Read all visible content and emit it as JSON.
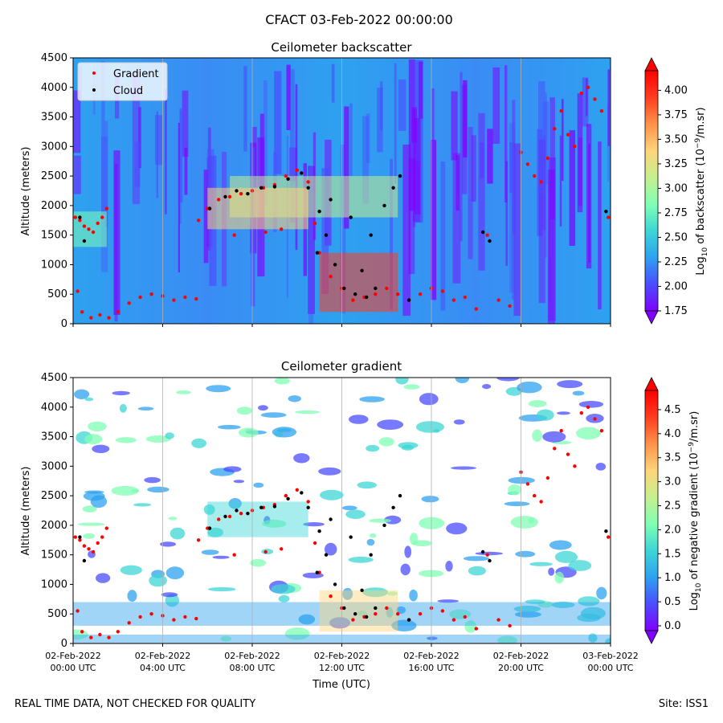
{
  "figure_title": "CFACT 03-Feb-2022 00:00:00",
  "footer": {
    "quality_note": "REAL TIME DATA, NOT CHECKED FOR QUALITY",
    "site": "Site: ISS1"
  },
  "colormap": [
    "#8000ff",
    "#4a4dfd",
    "#2ea1f0",
    "#3dd6d6",
    "#80ffb4",
    "#c6f08e",
    "#ffd47a",
    "#ff9248",
    "#ff3d1f",
    "#ff0000"
  ],
  "colors": {
    "gradient_marker": "#ff0000",
    "cloud_marker": "#000000",
    "panel_background": "#ffffff"
  },
  "chart_data": [
    {
      "type": "heatmap",
      "title": "Ceilometer backscatter",
      "xlabel": "",
      "ylabel": "Altitude (meters)",
      "ylim": [
        0,
        4500
      ],
      "yticks": [
        "0",
        "500",
        "1000",
        "1500",
        "2000",
        "2500",
        "3000",
        "3500",
        "4000",
        "4500"
      ],
      "xlim_hours": [
        0,
        24
      ],
      "xtick_labels_shown": false,
      "colorbar": {
        "label": "Log10 of backscatter (10^-9/m.sr)",
        "label_main": "Log",
        "label_sub": "10",
        "label_rest": " of backscatter (10",
        "label_sup": "−9",
        "label_end": "/m.sr)",
        "range": [
          1.75,
          4.2
        ],
        "ticks": [
          "1.75",
          "2.00",
          "2.25",
          "2.50",
          "2.75",
          "3.00",
          "3.25",
          "3.50",
          "3.75",
          "4.00"
        ]
      },
      "legend": {
        "placement": "upper-left",
        "entries": [
          "Gradient",
          "Cloud"
        ]
      },
      "series": [
        {
          "name": "Gradient",
          "kind": "scatter",
          "points": [
            [
              0.1,
              1800
            ],
            [
              0.3,
              1750
            ],
            [
              0.5,
              1650
            ],
            [
              0.7,
              1600
            ],
            [
              0.9,
              1550
            ],
            [
              1.1,
              1700
            ],
            [
              1.3,
              1800
            ],
            [
              1.5,
              1950
            ],
            [
              0.2,
              550
            ],
            [
              0.4,
              200
            ],
            [
              0.8,
              100
            ],
            [
              1.2,
              150
            ],
            [
              1.6,
              100
            ],
            [
              2,
              200
            ],
            [
              2.5,
              350
            ],
            [
              3,
              450
            ],
            [
              3.5,
              500
            ],
            [
              4,
              470
            ],
            [
              4.5,
              400
            ],
            [
              5,
              450
            ],
            [
              5.5,
              420
            ],
            [
              6,
              1950
            ],
            [
              6.5,
              2100
            ],
            [
              7,
              2150
            ],
            [
              7.5,
              2200
            ],
            [
              8,
              2250
            ],
            [
              8.5,
              2300
            ],
            [
              9,
              2350
            ],
            [
              9.5,
              2500
            ],
            [
              10,
              2600
            ],
            [
              10.5,
              2400
            ],
            [
              11,
              1200
            ],
            [
              11.5,
              800
            ],
            [
              12,
              600
            ],
            [
              12.5,
              400
            ],
            [
              13,
              450
            ],
            [
              13.5,
              500
            ],
            [
              14,
              600
            ],
            [
              14.5,
              500
            ],
            [
              15,
              400
            ],
            [
              15.5,
              500
            ],
            [
              16,
              600
            ],
            [
              16.5,
              550
            ],
            [
              17,
              400
            ],
            [
              17.5,
              450
            ],
            [
              18,
              250
            ],
            [
              18.5,
              1500
            ],
            [
              19,
              400
            ],
            [
              19.5,
              300
            ],
            [
              20,
              2900
            ],
            [
              20.3,
              2700
            ],
            [
              20.6,
              2500
            ],
            [
              20.9,
              2400
            ],
            [
              21.2,
              2800
            ],
            [
              21.5,
              3300
            ],
            [
              21.8,
              3600
            ],
            [
              22.1,
              3200
            ],
            [
              22.4,
              3000
            ],
            [
              22.7,
              3900
            ],
            [
              23,
              4000
            ],
            [
              23.3,
              3800
            ],
            [
              23.6,
              3600
            ],
            [
              23.9,
              1800
            ],
            [
              5.6,
              1750
            ],
            [
              7.2,
              1500
            ],
            [
              8.6,
              1550
            ],
            [
              9.3,
              1600
            ],
            [
              10.8,
              1700
            ]
          ]
        },
        {
          "name": "Cloud",
          "kind": "scatter",
          "points": [
            [
              0.3,
              1800
            ],
            [
              0.5,
              1400
            ],
            [
              6.1,
              1950
            ],
            [
              6.8,
              2150
            ],
            [
              7.3,
              2250
            ],
            [
              7.8,
              2200
            ],
            [
              8.4,
              2300
            ],
            [
              9,
              2320
            ],
            [
              9.6,
              2450
            ],
            [
              10.2,
              2550
            ],
            [
              10.5,
              2300
            ],
            [
              11,
              1900
            ],
            [
              11.3,
              1500
            ],
            [
              11.7,
              1000
            ],
            [
              12.1,
              600
            ],
            [
              12.6,
              500
            ],
            [
              13.1,
              450
            ],
            [
              13.5,
              600
            ],
            [
              13.9,
              2000
            ],
            [
              14.3,
              2300
            ],
            [
              14.6,
              2500
            ],
            [
              15,
              400
            ],
            [
              11.5,
              2100
            ],
            [
              12.4,
              1800
            ],
            [
              13.3,
              1500
            ],
            [
              18.3,
              1550
            ],
            [
              18.6,
              1400
            ],
            [
              23.8,
              1900
            ],
            [
              10.9,
              1200
            ],
            [
              12.9,
              900
            ]
          ]
        }
      ]
    },
    {
      "type": "heatmap",
      "title": "Ceilometer gradient",
      "xlabel": "Time (UTC)",
      "ylabel": "Altitude (meters)",
      "ylim": [
        0,
        4500
      ],
      "yticks": [
        "0",
        "500",
        "1000",
        "1500",
        "2000",
        "2500",
        "3000",
        "3500",
        "4000",
        "4500"
      ],
      "xlim_hours": [
        0,
        24
      ],
      "xticks": [
        {
          "date": "02-Feb-2022",
          "time": "00:00 UTC"
        },
        {
          "date": "02-Feb-2022",
          "time": "04:00 UTC"
        },
        {
          "date": "02-Feb-2022",
          "time": "08:00 UTC"
        },
        {
          "date": "02-Feb-2022",
          "time": "12:00 UTC"
        },
        {
          "date": "02-Feb-2022",
          "time": "16:00 UTC"
        },
        {
          "date": "02-Feb-2022",
          "time": "20:00 UTC"
        },
        {
          "date": "03-Feb-2022",
          "time": "00:00 UTC"
        }
      ],
      "colorbar": {
        "label": "Log10 of negative gradient (10^-9/m.sr)",
        "label_main": "Log",
        "label_sub": "10",
        "label_rest": " of negative gradient (10",
        "label_sup": "−9",
        "label_end": "/m.sr)",
        "range": [
          -0.1,
          4.9
        ],
        "ticks": [
          "0.0",
          "0.5",
          "1.0",
          "1.5",
          "2.0",
          "2.5",
          "3.0",
          "3.5",
          "4.0",
          "4.5"
        ]
      },
      "series": [
        {
          "name": "Gradient",
          "kind": "scatter",
          "same_as_panel": 0
        },
        {
          "name": "Cloud",
          "kind": "scatter",
          "same_as_panel": 0
        }
      ]
    }
  ]
}
